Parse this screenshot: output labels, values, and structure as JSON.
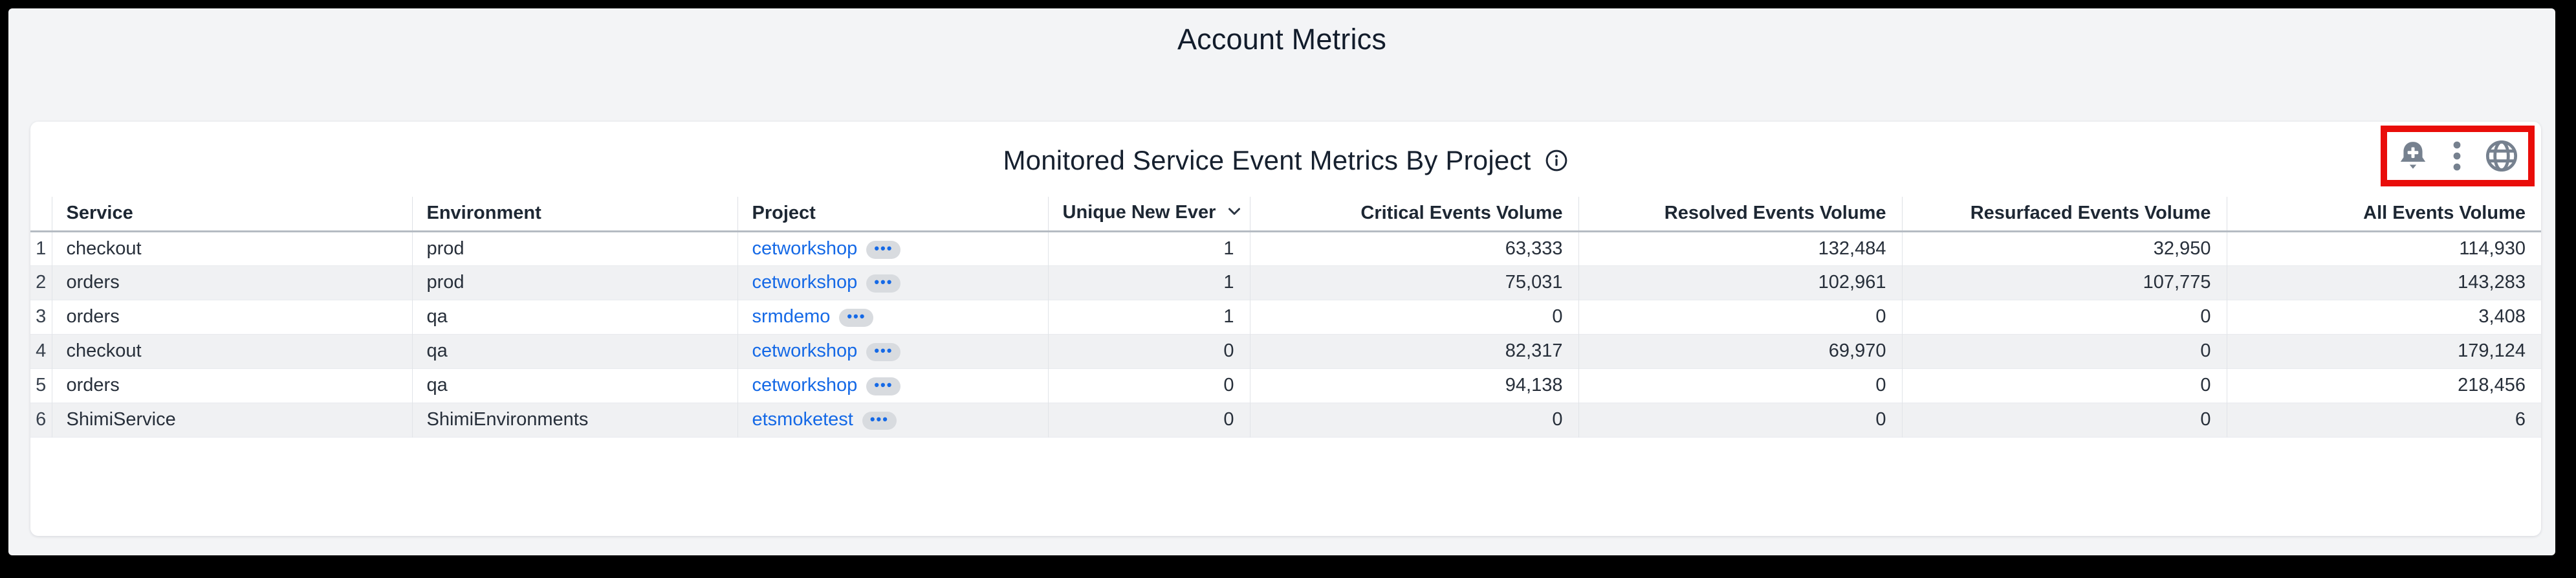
{
  "page": {
    "title": "Account Metrics"
  },
  "widget": {
    "title": "Monitored Service Event Metrics By Project",
    "controls": [
      {
        "icon": "bell-plus-icon"
      },
      {
        "icon": "kebab-menu-icon"
      },
      {
        "icon": "globe-icon"
      }
    ],
    "annotation_color": "#e90d0a"
  },
  "table": {
    "columns": [
      {
        "label": "Service",
        "sorted": false
      },
      {
        "label": "Environment",
        "sorted": false
      },
      {
        "label": "Project",
        "sorted": false
      },
      {
        "label": "Unique New Ever",
        "sorted": true
      },
      {
        "label": "Critical Events Volume",
        "sorted": false
      },
      {
        "label": "Resolved Events Volume",
        "sorted": false
      },
      {
        "label": "Resurfaced Events Volume",
        "sorted": false
      },
      {
        "label": "All Events Volume",
        "sorted": false
      }
    ],
    "rows": [
      {
        "num": "1",
        "service": "checkout",
        "environment": "prod",
        "project": "cetworkshop",
        "unique_new": "1",
        "critical": "63,333",
        "resolved": "132,484",
        "resurfaced": "32,950",
        "all": "114,930"
      },
      {
        "num": "2",
        "service": "orders",
        "environment": "prod",
        "project": "cetworkshop",
        "unique_new": "1",
        "critical": "75,031",
        "resolved": "102,961",
        "resurfaced": "107,775",
        "all": "143,283"
      },
      {
        "num": "3",
        "service": "orders",
        "environment": "qa",
        "project": "srmdemo",
        "unique_new": "1",
        "critical": "0",
        "resolved": "0",
        "resurfaced": "0",
        "all": "3,408"
      },
      {
        "num": "4",
        "service": "checkout",
        "environment": "qa",
        "project": "cetworkshop",
        "unique_new": "0",
        "critical": "82,317",
        "resolved": "69,970",
        "resurfaced": "0",
        "all": "179,124"
      },
      {
        "num": "5",
        "service": "orders",
        "environment": "qa",
        "project": "cetworkshop",
        "unique_new": "0",
        "critical": "94,138",
        "resolved": "0",
        "resurfaced": "0",
        "all": "218,456"
      },
      {
        "num": "6",
        "service": "ShimiService",
        "environment": "ShimiEnvironments",
        "project": "etsmoketest",
        "unique_new": "0",
        "critical": "0",
        "resolved": "0",
        "resurfaced": "0",
        "all": "6"
      }
    ],
    "project_more_glyph": "•••"
  },
  "colors": {
    "link": "#1569e6",
    "icon": "#76818f",
    "annotation_red": "#e90d0a"
  }
}
